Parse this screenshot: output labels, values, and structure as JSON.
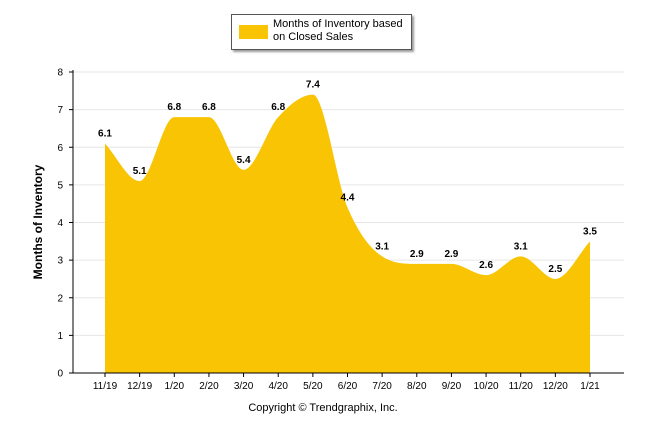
{
  "chart_data": {
    "type": "area",
    "categories": [
      "11/19",
      "12/19",
      "1/20",
      "2/20",
      "3/20",
      "4/20",
      "5/20",
      "6/20",
      "7/20",
      "8/20",
      "9/20",
      "10/20",
      "11/20",
      "12/20",
      "1/21"
    ],
    "series": [
      {
        "name": "Months of Inventory based on Closed Sales",
        "values": [
          6.1,
          5.1,
          6.8,
          6.8,
          5.4,
          6.8,
          7.4,
          4.4,
          3.1,
          2.9,
          2.9,
          2.6,
          3.1,
          2.5,
          3.5
        ]
      }
    ],
    "data_labels": [
      "6.1",
      "5.1",
      "6.8",
      "6.8",
      "5.4",
      "6.8",
      "7.4",
      "4.4",
      "3.1",
      "2.9",
      "2.9",
      "2.6",
      "3.1",
      "2.5",
      "3.5"
    ],
    "ylabel": "Months of Inventory",
    "xlabel": "",
    "ylim": [
      0,
      8
    ],
    "yticks": [
      "0",
      "1",
      "2",
      "3",
      "4",
      "5",
      "6",
      "7",
      "8"
    ],
    "grid": true,
    "legend": "top-center",
    "colors": {
      "fill": "#F8C404",
      "grid": "#E6E6E6",
      "axis": "#000000"
    }
  },
  "legend": {
    "label": "Months of Inventory based on Closed Sales"
  },
  "footer": {
    "copyright": "Copyright © Trendgraphix, Inc."
  }
}
